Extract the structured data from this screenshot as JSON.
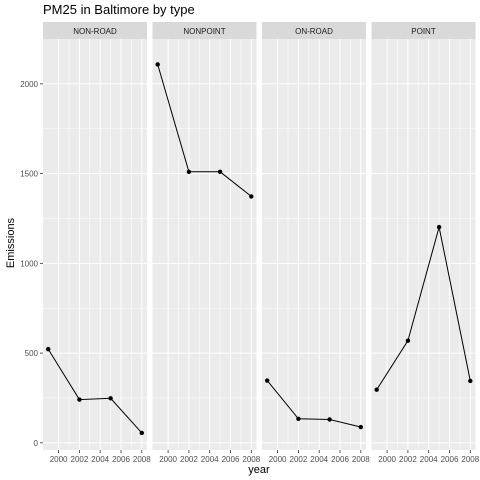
{
  "chart_data": {
    "type": "line",
    "title": "PM25 in Baltimore by type",
    "xlabel": "year",
    "ylabel": "Emissions",
    "ylim": [
      -40,
      2250
    ],
    "xlim": [
      1998.5,
      2008.5
    ],
    "yticks": [
      0,
      500,
      1000,
      1500,
      2000
    ],
    "xticks": [
      2000,
      2002,
      2004,
      2006,
      2008
    ],
    "grid": true,
    "facets": [
      {
        "label": "NON-ROAD",
        "x": [
          1999,
          2002,
          2005,
          2008
        ],
        "y": [
          522,
          241,
          248,
          55
        ]
      },
      {
        "label": "NONPOINT",
        "x": [
          1999,
          2002,
          2005,
          2008
        ],
        "y": [
          2108,
          1510,
          1510,
          1373
        ]
      },
      {
        "label": "ON-ROAD",
        "x": [
          1999,
          2002,
          2005,
          2008
        ],
        "y": [
          347,
          134,
          130,
          88
        ]
      },
      {
        "label": "POINT",
        "x": [
          1999,
          2002,
          2005,
          2008
        ],
        "y": [
          296,
          569,
          1202,
          345
        ]
      }
    ]
  },
  "colors": {
    "panel_bg": "#ebebeb",
    "strip_bg": "#d9d9d9",
    "grid_major": "#ffffff",
    "line": "#000000",
    "point": "#000000"
  }
}
